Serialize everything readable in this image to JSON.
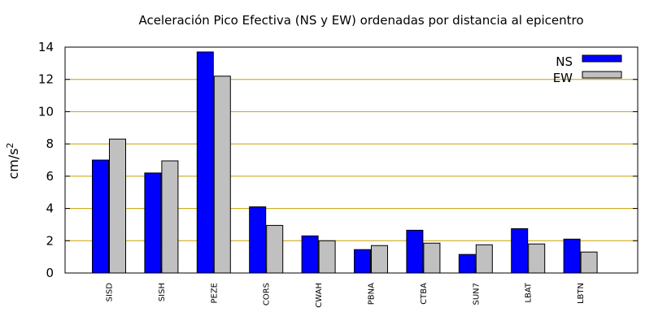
{
  "chart_data": {
    "type": "bar",
    "title": "Aceleración Pico Efectiva (NS y EW) ordenadas por distancia al epicentro",
    "ylabel": "cm/s",
    "ylabel_sup": "2",
    "xlabel": "",
    "ylim": [
      0,
      14
    ],
    "yticks": [
      0,
      2,
      4,
      6,
      8,
      10,
      12,
      14
    ],
    "grid": "horizontal",
    "legend_position": "top-right",
    "categories": [
      "SISD",
      "SISH",
      "PEZE",
      "CORS",
      "CWAH",
      "PBNA",
      "CTBA",
      "SUN7",
      "LBAT",
      "LBTN"
    ],
    "series": [
      {
        "name": "NS",
        "color": "#0000ff",
        "values": [
          7.0,
          6.2,
          13.7,
          4.1,
          2.3,
          1.45,
          2.65,
          1.15,
          2.75,
          2.1
        ]
      },
      {
        "name": "EW",
        "color": "#c0c0c0",
        "values": [
          8.3,
          6.95,
          12.2,
          2.95,
          2.0,
          1.7,
          1.85,
          1.75,
          1.8,
          1.3
        ]
      }
    ],
    "grid_color": "#c8a000"
  }
}
